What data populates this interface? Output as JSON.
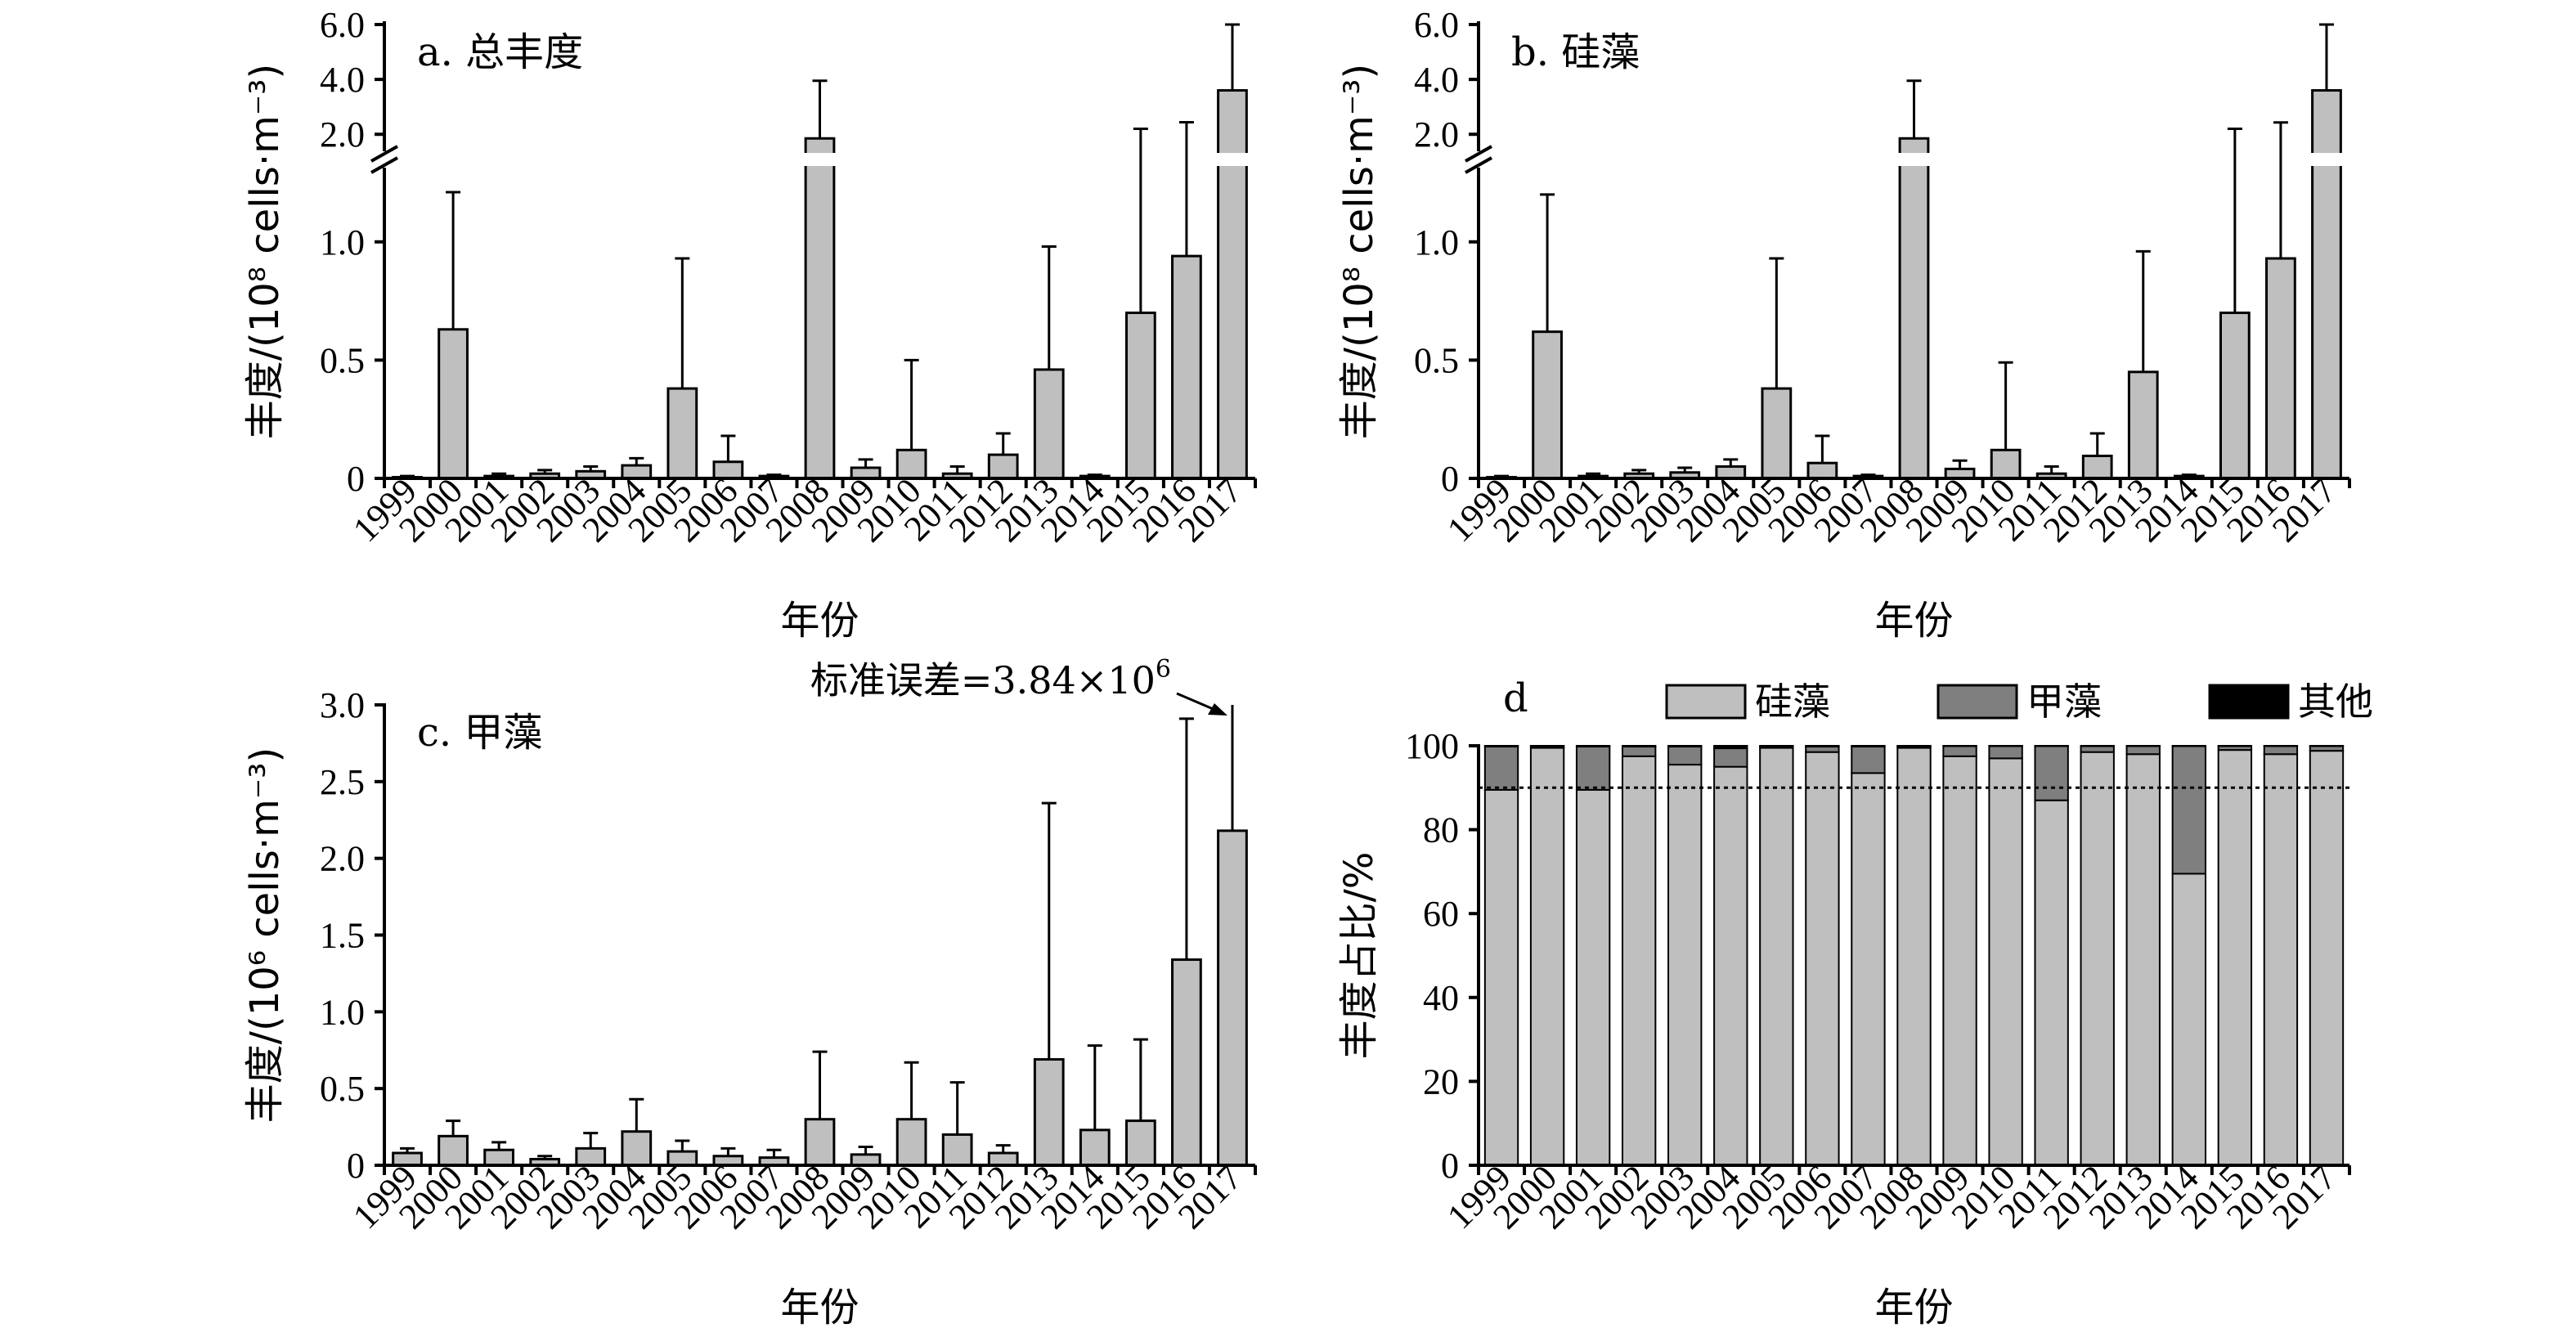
{
  "chart_data": [
    {
      "type": "bar",
      "panel": "a",
      "title": "a. 总丰度",
      "xlabel": "年份",
      "ylabel": "丰度/(10⁸ cells·m⁻³)",
      "categories": [
        "1999",
        "2000",
        "2001",
        "2002",
        "2003",
        "2004",
        "2005",
        "2006",
        "2007",
        "2008",
        "2009",
        "2010",
        "2011",
        "2012",
        "2013",
        "2014",
        "2015",
        "2016",
        "2017"
      ],
      "values": [
        0.005,
        0.63,
        0.01,
        0.02,
        0.03,
        0.055,
        0.38,
        0.07,
        0.01,
        1.85,
        0.045,
        0.12,
        0.02,
        0.1,
        0.46,
        0.01,
        0.7,
        0.94,
        3.6
      ],
      "errors": [
        0.005,
        0.58,
        0.01,
        0.015,
        0.02,
        0.03,
        0.55,
        0.11,
        0.005,
        2.1,
        0.035,
        0.38,
        0.03,
        0.09,
        0.52,
        0.005,
        1.5,
        1.5,
        2.4
      ],
      "broken_axis": {
        "lower_ylim": [
          0,
          1.3
        ],
        "upper_ylim": [
          1.5,
          6.0
        ]
      },
      "yticks_lower": [
        {
          "value": 0,
          "label": "0"
        },
        {
          "value": 0.5,
          "label": "0.5"
        },
        {
          "value": 1.0,
          "label": "1.0"
        }
      ],
      "yticks_upper": [
        {
          "value": 2.0,
          "label": "2.0"
        },
        {
          "value": 4.0,
          "label": "4.0"
        },
        {
          "value": 6.0,
          "label": "6.0"
        }
      ],
      "color": "#bfbfbf"
    },
    {
      "type": "bar",
      "panel": "b",
      "title": "b. 硅藻",
      "xlabel": "年份",
      "ylabel": "丰度/(10⁸ cells·m⁻³)",
      "categories": [
        "1999",
        "2000",
        "2001",
        "2002",
        "2003",
        "2004",
        "2005",
        "2006",
        "2007",
        "2008",
        "2009",
        "2010",
        "2011",
        "2012",
        "2013",
        "2014",
        "2015",
        "2016",
        "2017"
      ],
      "values": [
        0.005,
        0.62,
        0.01,
        0.02,
        0.025,
        0.05,
        0.38,
        0.065,
        0.01,
        1.85,
        0.04,
        0.12,
        0.02,
        0.095,
        0.45,
        0.01,
        0.7,
        0.93,
        3.6
      ],
      "errors": [
        0.005,
        0.58,
        0.01,
        0.015,
        0.02,
        0.03,
        0.55,
        0.115,
        0.005,
        2.1,
        0.035,
        0.37,
        0.03,
        0.095,
        0.51,
        0.005,
        1.5,
        1.5,
        2.4
      ],
      "broken_axis": {
        "lower_ylim": [
          0,
          1.3
        ],
        "upper_ylim": [
          1.5,
          6.0
        ]
      },
      "yticks_lower": [
        {
          "value": 0,
          "label": "0"
        },
        {
          "value": 0.5,
          "label": "0.5"
        },
        {
          "value": 1.0,
          "label": "1.0"
        }
      ],
      "yticks_upper": [
        {
          "value": 2.0,
          "label": "2.0"
        },
        {
          "value": 4.0,
          "label": "4.0"
        },
        {
          "value": 6.0,
          "label": "6.0"
        }
      ],
      "color": "#bfbfbf"
    },
    {
      "type": "bar",
      "panel": "c",
      "title": "c. 甲藻",
      "xlabel": "年份",
      "ylabel": "丰度/(10⁶ cells·m⁻³)",
      "categories": [
        "1999",
        "2000",
        "2001",
        "2002",
        "2003",
        "2004",
        "2005",
        "2006",
        "2007",
        "2008",
        "2009",
        "2010",
        "2011",
        "2012",
        "2013",
        "2014",
        "2015",
        "2016",
        "2017"
      ],
      "values": [
        0.08,
        0.19,
        0.1,
        0.04,
        0.11,
        0.22,
        0.09,
        0.06,
        0.05,
        0.3,
        0.07,
        0.3,
        0.2,
        0.08,
        0.69,
        0.23,
        0.29,
        1.34,
        2.18
      ],
      "errors": [
        0.03,
        0.1,
        0.05,
        0.02,
        0.1,
        0.21,
        0.07,
        0.05,
        0.05,
        0.44,
        0.05,
        0.37,
        0.34,
        0.05,
        1.67,
        0.55,
        0.53,
        1.57,
        3.84
      ],
      "ylim": [
        0,
        3.0
      ],
      "yticks": [
        {
          "value": 0,
          "label": "0"
        },
        {
          "value": 0.5,
          "label": "0.5"
        },
        {
          "value": 1.0,
          "label": "1.0"
        },
        {
          "value": 1.5,
          "label": "1.5"
        },
        {
          "value": 2.0,
          "label": "2.0"
        },
        {
          "value": 2.5,
          "label": "2.5"
        },
        {
          "value": 3.0,
          "label": "3.0"
        }
      ],
      "annotation": {
        "text": "标准误差=3.84×10",
        "superscript": "6"
      },
      "color": "#bfbfbf"
    },
    {
      "type": "bar",
      "stacked": true,
      "panel": "d",
      "title": "d",
      "xlabel": "年份",
      "ylabel": "丰度占比/%",
      "categories": [
        "1999",
        "2000",
        "2001",
        "2002",
        "2003",
        "2004",
        "2005",
        "2006",
        "2007",
        "2008",
        "2009",
        "2010",
        "2011",
        "2012",
        "2013",
        "2014",
        "2015",
        "2016",
        "2017"
      ],
      "ylim": [
        0,
        100
      ],
      "yticks": [
        {
          "value": 0,
          "label": "0"
        },
        {
          "value": 20,
          "label": "20"
        },
        {
          "value": 40,
          "label": "40"
        },
        {
          "value": 60,
          "label": "60"
        },
        {
          "value": 80,
          "label": "80"
        },
        {
          "value": 100,
          "label": "100"
        }
      ],
      "reference_line": 90,
      "legend_position": "top",
      "series": [
        {
          "name": "硅藻",
          "color": "#bfbfbf",
          "values": [
            89.5,
            99.5,
            89.5,
            97.5,
            95.5,
            95,
            99.5,
            98.5,
            93.5,
            99.5,
            97.5,
            97,
            87,
            98.5,
            98,
            69.5,
            99,
            98,
            98.8
          ]
        },
        {
          "name": "甲藻",
          "color": "#7f7f7f",
          "values": [
            10.3,
            0.4,
            10.3,
            2.3,
            4.3,
            4.4,
            0.4,
            1.3,
            6.3,
            0.4,
            2.4,
            2.9,
            12.9,
            1.4,
            1.9,
            30.4,
            0.9,
            1.9,
            1.1
          ]
        },
        {
          "name": "其他",
          "color": "#000000",
          "values": [
            0.2,
            0.1,
            0.2,
            0.2,
            0.2,
            0.6,
            0.1,
            0.2,
            0.2,
            0.1,
            0.1,
            0.1,
            0.1,
            0.1,
            0.1,
            0.1,
            0.1,
            0.1,
            0.1
          ]
        }
      ]
    }
  ]
}
